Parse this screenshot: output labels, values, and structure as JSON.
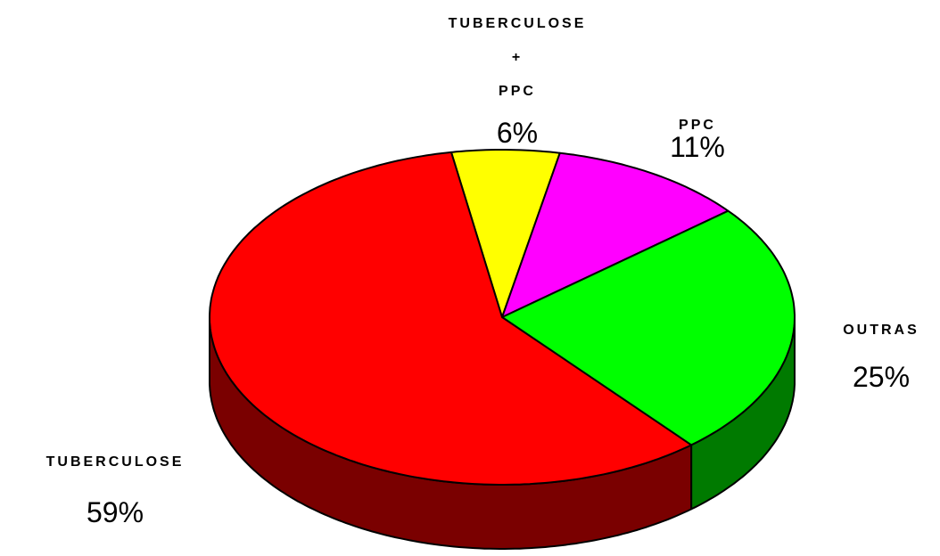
{
  "chart_data": {
    "type": "pie3d",
    "categories": [
      "TUBERCULOSE\n+\nPPC",
      "PPC",
      "OUTRAS",
      "TUBERCULOSE"
    ],
    "values": [
      6,
      11,
      25,
      59
    ],
    "value_labels": [
      "6%",
      "11%",
      "25%",
      "59%"
    ],
    "colors": [
      "#ffff00",
      "#ff00ff",
      "#00ff00",
      "#ff0000"
    ]
  }
}
